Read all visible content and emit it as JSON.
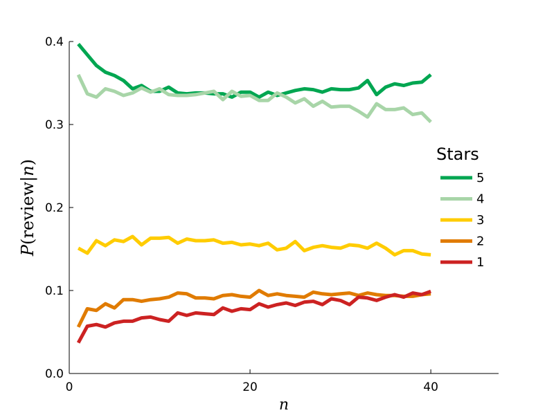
{
  "chart_data": {
    "type": "line",
    "xlabel": "n",
    "ylabel": {
      "prefix": "P",
      "open": "(review",
      "bar": "|",
      "var": "n",
      "close": ")"
    },
    "xlim": [
      0,
      47.5
    ],
    "ylim": [
      0,
      0.4
    ],
    "xticks": [
      0,
      20,
      40
    ],
    "yticks": [
      0.0,
      0.1,
      0.2,
      0.3,
      0.4
    ],
    "xtick_labels": [
      "0",
      "20",
      "40"
    ],
    "ytick_labels": [
      "0.0",
      "0.1",
      "0.2",
      "0.3",
      "0.4"
    ],
    "grid": false,
    "legend": {
      "title": "Stars",
      "position": "right"
    },
    "x": [
      1,
      2,
      3,
      4,
      5,
      6,
      7,
      8,
      9,
      10,
      11,
      12,
      13,
      14,
      15,
      16,
      17,
      18,
      19,
      20,
      21,
      22,
      23,
      24,
      25,
      26,
      27,
      28,
      29,
      30,
      31,
      32,
      33,
      34,
      35,
      36,
      37,
      38,
      39,
      40
    ],
    "series": [
      {
        "name": "5",
        "color": "#00a651",
        "values": [
          0.397,
          0.384,
          0.371,
          0.363,
          0.359,
          0.353,
          0.343,
          0.347,
          0.34,
          0.34,
          0.345,
          0.338,
          0.337,
          0.338,
          0.338,
          0.337,
          0.337,
          0.333,
          0.339,
          0.339,
          0.333,
          0.339,
          0.335,
          0.338,
          0.341,
          0.343,
          0.342,
          0.339,
          0.343,
          0.342,
          0.342,
          0.344,
          0.353,
          0.336,
          0.345,
          0.349,
          0.347,
          0.35,
          0.351,
          0.36
        ]
      },
      {
        "name": "4",
        "color": "#a8d5a8",
        "values": [
          0.36,
          0.337,
          0.333,
          0.343,
          0.34,
          0.335,
          0.338,
          0.344,
          0.339,
          0.343,
          0.336,
          0.335,
          0.335,
          0.336,
          0.338,
          0.34,
          0.33,
          0.34,
          0.334,
          0.335,
          0.329,
          0.329,
          0.338,
          0.333,
          0.326,
          0.331,
          0.322,
          0.328,
          0.321,
          0.322,
          0.322,
          0.316,
          0.309,
          0.325,
          0.318,
          0.318,
          0.32,
          0.312,
          0.314,
          0.303
        ]
      },
      {
        "name": "3",
        "color": "#ffcc00",
        "values": [
          0.151,
          0.145,
          0.16,
          0.154,
          0.161,
          0.159,
          0.165,
          0.155,
          0.163,
          0.163,
          0.164,
          0.157,
          0.162,
          0.16,
          0.16,
          0.161,
          0.157,
          0.158,
          0.155,
          0.156,
          0.154,
          0.157,
          0.149,
          0.151,
          0.159,
          0.148,
          0.152,
          0.154,
          0.152,
          0.151,
          0.155,
          0.154,
          0.151,
          0.157,
          0.151,
          0.143,
          0.148,
          0.148,
          0.144,
          0.143
        ]
      },
      {
        "name": "2",
        "color": "#e07b00",
        "values": [
          0.056,
          0.078,
          0.076,
          0.084,
          0.079,
          0.089,
          0.089,
          0.087,
          0.089,
          0.09,
          0.092,
          0.097,
          0.096,
          0.091,
          0.091,
          0.09,
          0.094,
          0.095,
          0.093,
          0.092,
          0.1,
          0.094,
          0.096,
          0.094,
          0.093,
          0.092,
          0.098,
          0.096,
          0.095,
          0.096,
          0.097,
          0.094,
          0.097,
          0.095,
          0.094,
          0.094,
          0.093,
          0.093,
          0.095,
          0.096
        ]
      },
      {
        "name": "1",
        "color": "#cc2222",
        "values": [
          0.037,
          0.057,
          0.059,
          0.056,
          0.061,
          0.063,
          0.063,
          0.067,
          0.068,
          0.065,
          0.063,
          0.073,
          0.07,
          0.073,
          0.072,
          0.071,
          0.079,
          0.075,
          0.078,
          0.077,
          0.084,
          0.08,
          0.083,
          0.085,
          0.082,
          0.086,
          0.087,
          0.083,
          0.09,
          0.088,
          0.083,
          0.092,
          0.091,
          0.088,
          0.092,
          0.095,
          0.092,
          0.097,
          0.095,
          0.099
        ]
      }
    ]
  }
}
